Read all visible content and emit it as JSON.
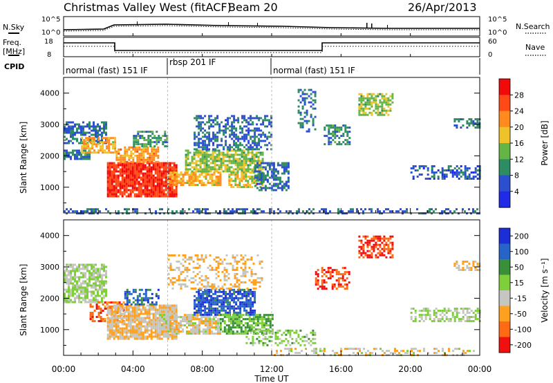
{
  "header": {
    "station": "Christmas Valley West (fitACF)",
    "beam": "Beam 20",
    "date": "26/Apr/2013"
  },
  "side_labels": {
    "nsky": "N.Sky",
    "nsearch": "N.Search",
    "freq_line1": "Freq.",
    "freq_line2": "[MHz]",
    "nave": "Nave",
    "cpid": "CPID"
  },
  "noise_axis": {
    "left_top": "10^5",
    "left_bottom": "10^0",
    "right_top": "10^5",
    "right_bottom": "10^0"
  },
  "freq_axis": {
    "left_ticks": [
      "18",
      "8"
    ],
    "right_ticks": [
      "60",
      "0"
    ]
  },
  "cpid_segments": [
    {
      "label": "normal (fast) 151 IF",
      "start_hr": 0,
      "end_hr": 6
    },
    {
      "label": "rbsp 201 IF",
      "start_hr": 6,
      "end_hr": 12
    },
    {
      "label": "normal (fast) 151 IF",
      "start_hr": 12,
      "end_hr": 24
    }
  ],
  "x_axis": {
    "label": "Time UT",
    "ticks": [
      "00:00",
      "04:00",
      "08:00",
      "12:00",
      "16:00",
      "20:00",
      "00:00"
    ],
    "range_hr": [
      0,
      24
    ]
  },
  "chart_data": [
    {
      "type": "heatmap",
      "title": "",
      "xlabel": "Time UT",
      "ylabel": "Slant Range [km]",
      "xlim_hr": [
        0,
        24
      ],
      "ylim": [
        180,
        4500
      ],
      "y_ticks": [
        1000,
        2000,
        3000,
        4000
      ],
      "colorbar": {
        "label": "Power [dB]",
        "range": [
          0,
          30
        ],
        "ticks": [
          "4",
          "8",
          "12",
          "16",
          "20",
          "24",
          "28"
        ],
        "colors": [
          "#1f2be6",
          "#2b4fcf",
          "#2e8c63",
          "#64b546",
          "#f0c22a",
          "#ff8a1e",
          "#ff4a18",
          "#f00a0a"
        ]
      },
      "regions": [
        {
          "t0": 0.0,
          "t1": 1.5,
          "r0": 1900,
          "r1": 2200,
          "value": 8,
          "density": 0.8
        },
        {
          "t0": 0.0,
          "t1": 2.5,
          "r0": 2400,
          "r1": 3100,
          "value": 7,
          "density": 0.65
        },
        {
          "t0": 1.0,
          "t1": 3.0,
          "r0": 2100,
          "r1": 2600,
          "value": 18,
          "density": 0.7
        },
        {
          "t0": 2.5,
          "t1": 6.5,
          "r0": 700,
          "r1": 1800,
          "value": 26,
          "density": 0.9
        },
        {
          "t0": 3.0,
          "t1": 5.5,
          "r0": 1800,
          "r1": 2300,
          "value": 20,
          "density": 0.75
        },
        {
          "t0": 4.0,
          "t1": 6.0,
          "r0": 2300,
          "r1": 2800,
          "value": 10,
          "density": 0.6
        },
        {
          "t0": 6.0,
          "t1": 9.0,
          "r0": 1100,
          "r1": 1500,
          "value": 18,
          "density": 0.8
        },
        {
          "t0": 7.0,
          "t1": 11.5,
          "r0": 1500,
          "r1": 2200,
          "value": 14,
          "density": 0.75
        },
        {
          "t0": 9.5,
          "t1": 11.5,
          "r0": 1000,
          "r1": 1500,
          "value": 16,
          "density": 0.7
        },
        {
          "t0": 7.5,
          "t1": 12.0,
          "r0": 2200,
          "r1": 3300,
          "value": 7,
          "density": 0.5
        },
        {
          "t0": 11.0,
          "t1": 13.0,
          "r0": 900,
          "r1": 1800,
          "value": 7,
          "density": 0.6
        },
        {
          "t0": 13.5,
          "t1": 14.5,
          "r0": 2800,
          "r1": 4200,
          "value": 8,
          "density": 0.35
        },
        {
          "t0": 15.0,
          "t1": 16.5,
          "r0": 2400,
          "r1": 3000,
          "value": 9,
          "density": 0.55
        },
        {
          "t0": 17.0,
          "t1": 19.0,
          "r0": 3300,
          "r1": 4000,
          "value": 14,
          "density": 0.6
        },
        {
          "t0": 20.0,
          "t1": 24.0,
          "r0": 1300,
          "r1": 1700,
          "value": 6,
          "density": 0.45
        },
        {
          "t0": 22.5,
          "t1": 24.0,
          "r0": 2900,
          "r1": 3200,
          "value": 8,
          "density": 0.6
        },
        {
          "t0": 0.0,
          "t1": 24.0,
          "r0": 180,
          "r1": 330,
          "value": 7,
          "density": 0.35
        }
      ]
    },
    {
      "type": "heatmap",
      "title": "",
      "xlabel": "Time UT",
      "ylabel": "Slant Range [km]",
      "xlim_hr": [
        0,
        24
      ],
      "ylim": [
        180,
        4500
      ],
      "y_ticks": [
        1000,
        2000,
        3000,
        4000
      ],
      "colorbar": {
        "label": "Velocity [m s⁻¹]",
        "range": [
          -250,
          250
        ],
        "ticks": [
          "200",
          "100",
          "50",
          "15",
          "-15",
          "-50",
          "-100",
          "-200"
        ],
        "colors": [
          "#1c2fd6",
          "#2864c8",
          "#3a8f3a",
          "#7fcf3a",
          "#c6c6c0",
          "#ffa01e",
          "#ff6a14",
          "#f01010"
        ]
      },
      "regions": [
        {
          "t0": 0.0,
          "t1": 2.5,
          "r0": 1900,
          "r1": 3100,
          "value": 0,
          "density": 0.75
        },
        {
          "t0": 1.5,
          "t1": 3.5,
          "r0": 1300,
          "r1": 1900,
          "value": -150,
          "density": 0.55
        },
        {
          "t0": 2.5,
          "t1": 6.5,
          "r0": 700,
          "r1": 1800,
          "value": -60,
          "density": 0.85
        },
        {
          "t0": 3.5,
          "t1": 5.5,
          "r0": 1800,
          "r1": 2300,
          "value": 150,
          "density": 0.55
        },
        {
          "t0": 5.5,
          "t1": 9.0,
          "r0": 900,
          "r1": 1500,
          "value": -40,
          "density": 0.75
        },
        {
          "t0": 7.5,
          "t1": 11.0,
          "r0": 1500,
          "r1": 2300,
          "value": 170,
          "density": 0.75
        },
        {
          "t0": 9.0,
          "t1": 12.0,
          "r0": 900,
          "r1": 1500,
          "value": 60,
          "density": 0.7
        },
        {
          "t0": 10.5,
          "t1": 14.5,
          "r0": 500,
          "r1": 1000,
          "value": 30,
          "density": 0.4
        },
        {
          "t0": 6.0,
          "t1": 11.5,
          "r0": 2300,
          "r1": 3400,
          "value": -70,
          "density": 0.35
        },
        {
          "t0": 14.5,
          "t1": 16.5,
          "r0": 2300,
          "r1": 3000,
          "value": -180,
          "density": 0.45
        },
        {
          "t0": 17.0,
          "t1": 19.0,
          "r0": 3300,
          "r1": 4000,
          "value": -200,
          "density": 0.6
        },
        {
          "t0": 20.0,
          "t1": 24.0,
          "r0": 1300,
          "r1": 1700,
          "value": 0,
          "density": 0.5
        },
        {
          "t0": 22.5,
          "t1": 24.0,
          "r0": 2900,
          "r1": 3200,
          "value": -70,
          "density": 0.6
        },
        {
          "t0": 12.0,
          "t1": 24.0,
          "r0": 180,
          "r1": 420,
          "value": -40,
          "density": 0.3
        }
      ]
    }
  ]
}
